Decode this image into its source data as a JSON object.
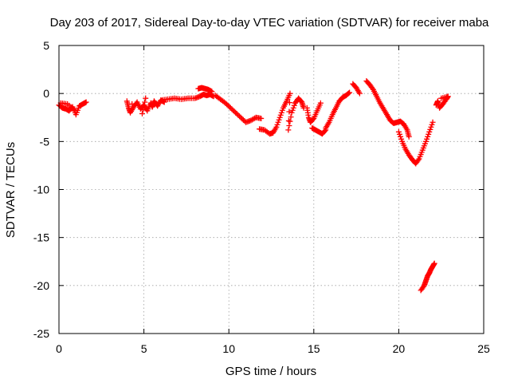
{
  "chart_data": {
    "type": "scatter",
    "title": "Day 203 of 2017, Sidereal Day-to-day VTEC variation (SDTVAR) for receiver maba",
    "xlabel": "GPS time / hours",
    "ylabel": "SDTVAR / TECUs",
    "xlim": [
      0,
      25
    ],
    "ylim": [
      -25,
      5
    ],
    "xticks": [
      0,
      5,
      10,
      15,
      20,
      25
    ],
    "yticks": [
      5,
      0,
      -5,
      -10,
      -15,
      -20,
      -25
    ],
    "grid": true,
    "marker": "plus",
    "color": "#ff0000",
    "series": [
      {
        "name": "SDTVAR",
        "segments": [
          [
            [
              0.0,
              -1.2
            ],
            [
              0.2,
              -1.5
            ],
            [
              0.4,
              -1.6
            ],
            [
              0.6,
              -1.8
            ],
            [
              0.8,
              -1.4
            ],
            [
              1.0,
              -2.2
            ],
            [
              1.2,
              -1.3
            ],
            [
              1.4,
              -1.1
            ],
            [
              1.6,
              -0.9
            ],
            [
              0.1,
              -1.0
            ],
            [
              0.5,
              -1.1
            ],
            [
              0.9,
              -1.7
            ]
          ],
          [
            [
              4.0,
              -0.8
            ],
            [
              4.1,
              -1.5
            ],
            [
              4.2,
              -2.0
            ],
            [
              4.4,
              -1.4
            ],
            [
              4.6,
              -0.9
            ],
            [
              4.8,
              -1.6
            ],
            [
              5.0,
              -1.2
            ],
            [
              5.2,
              -1.8
            ],
            [
              5.4,
              -1.0
            ],
            [
              5.5,
              -1.4
            ],
            [
              5.6,
              -0.8
            ],
            [
              5.8,
              -1.3
            ],
            [
              6.0,
              -0.7
            ],
            [
              6.2,
              -0.9
            ],
            [
              4.3,
              -1.1
            ],
            [
              4.9,
              -2.1
            ],
            [
              5.1,
              -0.5
            ]
          ],
          [
            [
              6.0,
              -0.7
            ],
            [
              6.4,
              -0.6
            ],
            [
              6.8,
              -0.5
            ],
            [
              7.2,
              -0.6
            ],
            [
              7.6,
              -0.5
            ],
            [
              8.0,
              -0.5
            ],
            [
              8.3,
              -0.3
            ],
            [
              8.5,
              -0.1
            ],
            [
              8.7,
              -0.2
            ],
            [
              8.9,
              -0.1
            ],
            [
              9.1,
              -0.3
            ],
            [
              8.2,
              0.5
            ],
            [
              8.4,
              0.6
            ],
            [
              8.6,
              0.5
            ],
            [
              8.8,
              0.4
            ],
            [
              9.0,
              0.2
            ]
          ],
          [
            [
              9.2,
              -0.2
            ],
            [
              9.5,
              -0.6
            ],
            [
              9.8,
              -1.0
            ],
            [
              10.1,
              -1.5
            ],
            [
              10.4,
              -2.0
            ],
            [
              10.7,
              -2.5
            ],
            [
              11.0,
              -3.0
            ],
            [
              11.3,
              -2.8
            ],
            [
              11.6,
              -2.5
            ],
            [
              11.9,
              -2.6
            ]
          ],
          [
            [
              11.8,
              -3.7
            ],
            [
              12.1,
              -3.8
            ],
            [
              12.4,
              -4.2
            ],
            [
              12.6,
              -4.1
            ],
            [
              12.8,
              -3.5
            ],
            [
              13.0,
              -2.5
            ],
            [
              13.2,
              -1.5
            ],
            [
              13.4,
              -0.8
            ],
            [
              13.6,
              0.0
            ],
            [
              13.5,
              -3.8
            ],
            [
              13.7,
              -2.0
            ],
            [
              13.9,
              -1.0
            ],
            [
              14.1,
              -0.5
            ],
            [
              14.3,
              -0.9
            ],
            [
              14.4,
              -1.5
            ]
          ],
          [
            [
              14.6,
              -1.5
            ],
            [
              14.7,
              -2.5
            ],
            [
              14.8,
              -3.0
            ],
            [
              15.0,
              -2.6
            ],
            [
              15.2,
              -1.8
            ],
            [
              15.4,
              -1.0
            ],
            [
              14.9,
              -3.6
            ],
            [
              15.1,
              -3.8
            ],
            [
              15.3,
              -4.0
            ],
            [
              15.5,
              -4.2
            ],
            [
              15.7,
              -3.8
            ]
          ],
          [
            [
              15.7,
              -3.6
            ],
            [
              15.9,
              -3.0
            ],
            [
              16.1,
              -2.2
            ],
            [
              16.3,
              -1.5
            ],
            [
              16.5,
              -0.8
            ],
            [
              16.7,
              -0.4
            ],
            [
              16.9,
              -0.2
            ],
            [
              17.1,
              0.1
            ]
          ],
          [
            [
              17.3,
              1.0
            ],
            [
              17.5,
              0.6
            ],
            [
              17.7,
              0.0
            ]
          ],
          [
            [
              18.1,
              1.3
            ],
            [
              18.3,
              0.9
            ],
            [
              18.5,
              0.4
            ],
            [
              18.7,
              -0.3
            ],
            [
              18.9,
              -1.0
            ],
            [
              19.1,
              -1.6
            ],
            [
              19.3,
              -2.2
            ],
            [
              19.5,
              -2.8
            ],
            [
              19.7,
              -3.1
            ],
            [
              19.9,
              -3.0
            ],
            [
              20.1,
              -2.9
            ],
            [
              20.3,
              -3.2
            ],
            [
              20.5,
              -3.8
            ],
            [
              20.6,
              -4.5
            ]
          ],
          [
            [
              20.0,
              -4.0
            ],
            [
              20.2,
              -5.0
            ],
            [
              20.4,
              -5.8
            ],
            [
              20.6,
              -6.4
            ],
            [
              20.8,
              -6.9
            ],
            [
              21.0,
              -7.3
            ],
            [
              21.2,
              -6.8
            ],
            [
              21.4,
              -5.9
            ],
            [
              21.6,
              -5.0
            ],
            [
              21.8,
              -4.0
            ],
            [
              22.0,
              -3.0
            ]
          ],
          [
            [
              21.3,
              -20.5
            ],
            [
              21.5,
              -20.0
            ],
            [
              21.6,
              -19.5
            ],
            [
              21.7,
              -19.0
            ],
            [
              21.8,
              -18.7
            ],
            [
              21.9,
              -18.3
            ],
            [
              22.0,
              -18.0
            ],
            [
              22.1,
              -17.7
            ]
          ],
          [
            [
              22.2,
              -1.2
            ],
            [
              22.3,
              -0.8
            ],
            [
              22.4,
              -1.5
            ],
            [
              22.6,
              -1.1
            ],
            [
              22.8,
              -0.6
            ],
            [
              22.9,
              -0.3
            ],
            [
              22.5,
              -0.5
            ]
          ]
        ]
      }
    ]
  }
}
